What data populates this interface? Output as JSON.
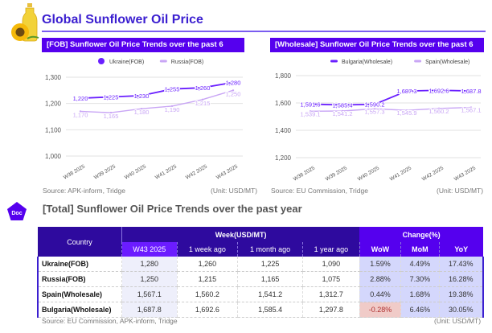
{
  "title": "Global Sunflower Oil Price",
  "colors": {
    "accent": "#5500ee",
    "primary_series": "#6a1fff",
    "secondary_series": "#c9a6f5",
    "negative": "#f0cbc8"
  },
  "charts": {
    "fob": {
      "header": "[FOB] Sunflower Oil Price Trends over the past 6 weeks",
      "source": "Source: APK-inform, Tridge",
      "unit": "(Unit: USD/MT)"
    },
    "wholesale": {
      "header": "[Wholesale] Sunflower Oil Price Trends over the past 6 weeks",
      "source": "Source: EU Commission, Tridge",
      "unit": "(Unit: USD/MT)"
    }
  },
  "chart_data": [
    {
      "type": "line",
      "title": "[FOB] Sunflower Oil Price Trends over the past 6 weeks",
      "categories": [
        "W38 2025",
        "W39 2025",
        "W40 2025",
        "W41 2025",
        "W42 2025",
        "W43 2025"
      ],
      "series": [
        {
          "name": "Ukraine(FOB)",
          "values": [
            1220,
            1225,
            1230,
            1255,
            1260,
            1280
          ],
          "labels": [
            "1,220",
            "1,225",
            "1,230",
            "1,255",
            "1,260",
            "1,280"
          ]
        },
        {
          "name": "Russia(FOB)",
          "values": [
            1170,
            1165,
            1180,
            1190,
            1215,
            1250
          ],
          "labels": [
            "1,170",
            "1,165",
            "1,180",
            "1,190",
            "1,215",
            "1,250"
          ]
        }
      ],
      "yticks": [
        "1,000",
        "1,100",
        "1,200",
        "1,300"
      ],
      "ylim": [
        1000,
        1300
      ],
      "grid": true,
      "legend": "top-center",
      "xlabel": "",
      "ylabel": ""
    },
    {
      "type": "line",
      "title": "[Wholesale] Sunflower Oil Price Trends over the past 6 weeks",
      "categories": [
        "W38 2025",
        "W39 2025",
        "W40 2025",
        "W41 2025",
        "W42 2025",
        "W43 2025"
      ],
      "series": [
        {
          "name": "Bulgaria(Wholesale)",
          "values": [
            1591.6,
            1585.4,
            1590.2,
            1687.3,
            1692.6,
            1687.8
          ],
          "labels": [
            "1,591.6",
            "1,585.4",
            "1,590.2",
            "1,687.3",
            "1,692.6",
            "1,687.8"
          ]
        },
        {
          "name": "Spain(Wholesale)",
          "values": [
            1539.1,
            1541.2,
            1557.3,
            1545.9,
            1560.2,
            1567.1
          ],
          "labels": [
            "1,539.1",
            "1,541.2",
            "1,557.3",
            "1,545.9",
            "1,560.2",
            "1,567.1"
          ]
        }
      ],
      "yticks": [
        "1,200",
        "1,400",
        "1,600",
        "1,800"
      ],
      "ylim": [
        1200,
        1800
      ],
      "grid": true,
      "legend": "top-center",
      "xlabel": "",
      "ylabel": ""
    }
  ],
  "section": {
    "icon_label": "Doc",
    "title": "[Total] Sunflower Oil Price Trends over the past year"
  },
  "table": {
    "headers": {
      "country": "Country",
      "week_group": "Week(USD/MT)",
      "change_group": "Change(%)",
      "cols": [
        "W43 2025",
        "1 week ago",
        "1 month ago",
        "1 year ago",
        "WoW",
        "MoM",
        "YoY"
      ]
    },
    "rows": [
      {
        "country": "Ukraine(FOB)",
        "values": [
          "1,280",
          "1,260",
          "1,225",
          "1,090"
        ],
        "changes": [
          "1.59%",
          "4.49%",
          "17.43%"
        ]
      },
      {
        "country": "Russia(FOB)",
        "values": [
          "1,250",
          "1,215",
          "1,165",
          "1,075"
        ],
        "changes": [
          "2.88%",
          "7.30%",
          "16.28%"
        ]
      },
      {
        "country": "Spain(Wholesale)",
        "values": [
          "1,567.1",
          "1,560.2",
          "1,541.2",
          "1,312.7"
        ],
        "changes": [
          "0.44%",
          "1.68%",
          "19.38%"
        ]
      },
      {
        "country": "Bulgaria(Wholesale)",
        "values": [
          "1,687.8",
          "1,692.6",
          "1,585.4",
          "1,297.8"
        ],
        "changes": [
          "-0.28%",
          "6.46%",
          "30.05%"
        ]
      }
    ],
    "source": "Source: EU Commission, APK-inform, Tridge",
    "unit": "(Unit: USD/MT)"
  }
}
